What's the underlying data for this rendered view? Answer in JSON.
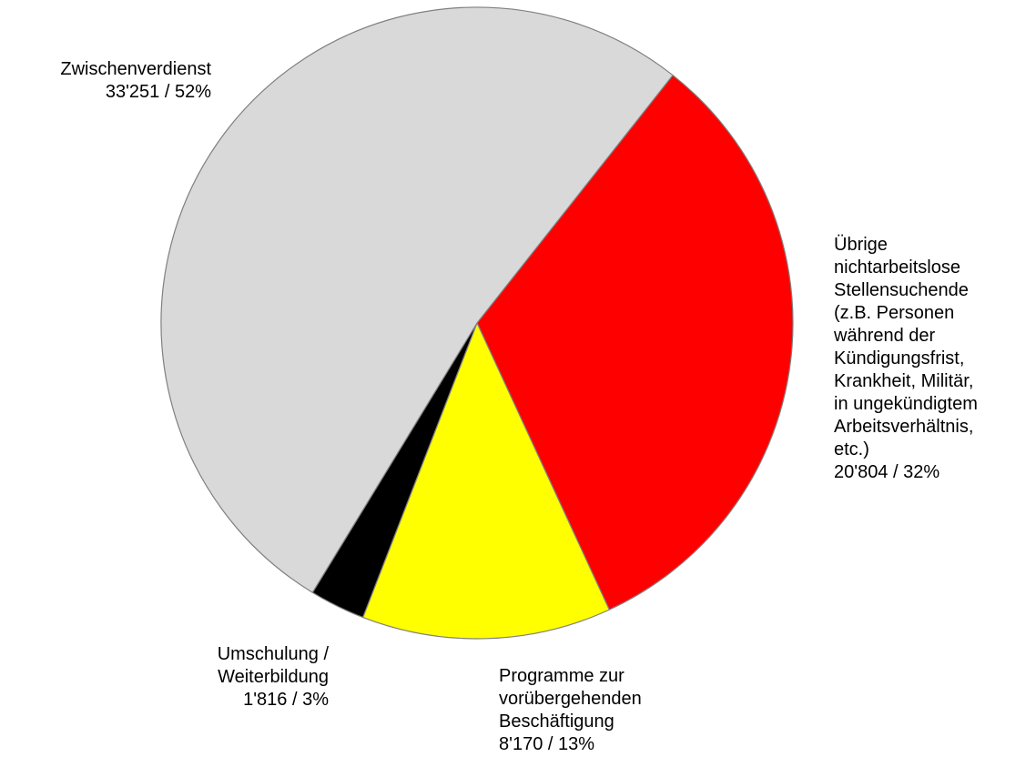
{
  "chart_data": {
    "type": "pie",
    "categories": [
      "Übrige\nnichtarbeitslose\nStellensuchende\n(z.B. Personen\nwährend der\nKündigungsfrist,\nKrankheit, Militär,\nin ungekündigtem\nArbeitsverhältnis,\netc.)",
      "Programme zur\nvorübergehenden\nBeschäftigung",
      "Umschulung /\nWeiterbildung",
      "Zwischenverdienst"
    ],
    "values": [
      20804,
      8170,
      1816,
      33251
    ],
    "value_labels": [
      "20'804 / 32%",
      "8'170 / 13%",
      "1'816 / 3%",
      "33'251 / 52%"
    ],
    "colors": [
      "#ff0000",
      "#ffff00",
      "#000000",
      "#d9d9d9"
    ]
  }
}
